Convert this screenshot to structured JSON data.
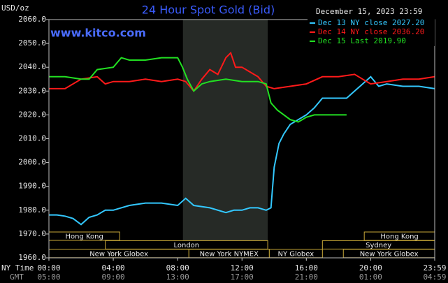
{
  "chart_data": {
    "type": "line",
    "title": "24 Hour Spot Gold (Bid)",
    "y_unit": "USD/oz",
    "timestamp": "December 15, 2023 23:59",
    "watermark": "www.kitco.com",
    "xlim": [
      0,
      23.98
    ],
    "xticks": [
      {
        "value": 0,
        "label": "00:00"
      },
      {
        "value": 4,
        "label": "04:00"
      },
      {
        "value": 8,
        "label": "08:00"
      },
      {
        "value": 12,
        "label": "12:00"
      },
      {
        "value": 16,
        "label": "16:00"
      },
      {
        "value": 20,
        "label": "20:00"
      },
      {
        "value": 23.98,
        "label": "23:59"
      }
    ],
    "x_row_label": "NY Time",
    "x2_row_label": "GMT",
    "x2tick_labels": [
      "05:00",
      "09:00",
      "13:00",
      "17:00",
      "21:00",
      "01:00",
      "04:59"
    ],
    "ylim": [
      1960,
      2060
    ],
    "yticks": [
      {
        "value": 1960,
        "label": "1960.0"
      },
      {
        "value": 1970,
        "label": "1970.0"
      },
      {
        "value": 1980,
        "label": "1980.0"
      },
      {
        "value": 1990,
        "label": "1990.0"
      },
      {
        "value": 2000,
        "label": "2000.0"
      },
      {
        "value": 2010,
        "label": "2010.0"
      },
      {
        "value": 2020,
        "label": "2020.0"
      },
      {
        "value": 2030,
        "label": "2030.0"
      },
      {
        "value": 2040,
        "label": "2040.0"
      },
      {
        "value": 2050,
        "label": "2050.0"
      },
      {
        "value": 2060,
        "label": "2060.0"
      }
    ],
    "shade": [
      8.33,
      13.6
    ],
    "series": [
      {
        "name": "Dec 13 NY close 2027.20",
        "color": "#33c8ff",
        "x": [
          0,
          0.5,
          1,
          1.5,
          2,
          2.5,
          3,
          3.5,
          4,
          5,
          6,
          7,
          8,
          8.5,
          9,
          10,
          11,
          11.5,
          12,
          12.5,
          13,
          13.5,
          13.8,
          14,
          14.3,
          14.6,
          15,
          15.5,
          16,
          16.5,
          17,
          18,
          18.5,
          19,
          19.5,
          20,
          20.5,
          21,
          22,
          23,
          23.98
        ],
        "values": [
          1978,
          1978,
          1977.5,
          1976.5,
          1974,
          1977,
          1978,
          1980,
          1980,
          1982,
          1983,
          1983,
          1982,
          1985,
          1982,
          1981,
          1979,
          1980,
          1980,
          1981,
          1981,
          1980,
          1981,
          1998,
          2008,
          2012,
          2016,
          2018,
          2020,
          2023,
          2027,
          2027,
          2027,
          2030,
          2033,
          2036,
          2032,
          2033,
          2032,
          2032,
          2031
        ]
      },
      {
        "name": "Dec 14 NY close 2036.20",
        "color": "#ff1a1a",
        "x": [
          0,
          1,
          2,
          3,
          3.5,
          4,
          5,
          6,
          7,
          8,
          8.5,
          9,
          9.5,
          10,
          10.5,
          11,
          11.3,
          11.6,
          12,
          12.5,
          13,
          13.5,
          14,
          15,
          16,
          17,
          18,
          19,
          19.5,
          20,
          21,
          22,
          23,
          23.98
        ],
        "values": [
          2031,
          2031,
          2035,
          2036,
          2033,
          2034,
          2034,
          2035,
          2034,
          2035,
          2034,
          2030,
          2035,
          2039,
          2037,
          2044,
          2046,
          2040,
          2040,
          2038,
          2036,
          2032,
          2031,
          2032,
          2033,
          2036,
          2036,
          2037,
          2035,
          2033,
          2034,
          2035,
          2035,
          2036
        ]
      },
      {
        "name": "Dec 15 Last 2019.90",
        "color": "#22e022",
        "x": [
          0,
          1,
          2,
          2.5,
          3,
          4,
          4.5,
          5,
          6,
          7,
          8,
          8.3,
          8.6,
          9,
          9.5,
          10,
          11,
          12,
          13,
          13.5,
          13.8,
          14.2,
          15,
          15.5,
          16,
          16.5,
          17,
          18,
          18.5
        ],
        "values": [
          2036,
          2036,
          2035,
          2035,
          2039,
          2040,
          2044,
          2043,
          2043,
          2044,
          2044,
          2040,
          2035,
          2030,
          2033,
          2034,
          2035,
          2034,
          2034,
          2033,
          2025,
          2022,
          2018,
          2017,
          2019,
          2020,
          2020,
          2020,
          2020
        ]
      }
    ],
    "sessions": [
      [
        {
          "label": "Hong Kong",
          "start": 0,
          "end": 4.4
        },
        {
          "label": "Hong Kong",
          "start": 19.6,
          "end": 23.98
        }
      ],
      [
        {
          "label": "London",
          "start": 3.5,
          "end": 13.6
        },
        {
          "label": "Sydney",
          "start": 17,
          "end": 23.98
        }
      ],
      [
        {
          "label": "New York Globex",
          "start": 0,
          "end": 8.7
        },
        {
          "label": "New York NYMEX",
          "start": 8.7,
          "end": 13.7
        },
        {
          "label": "NY Globex",
          "start": 13.7,
          "end": 17
        },
        {
          "label": "New York Globex",
          "start": 18.3,
          "end": 23.98
        }
      ]
    ]
  }
}
